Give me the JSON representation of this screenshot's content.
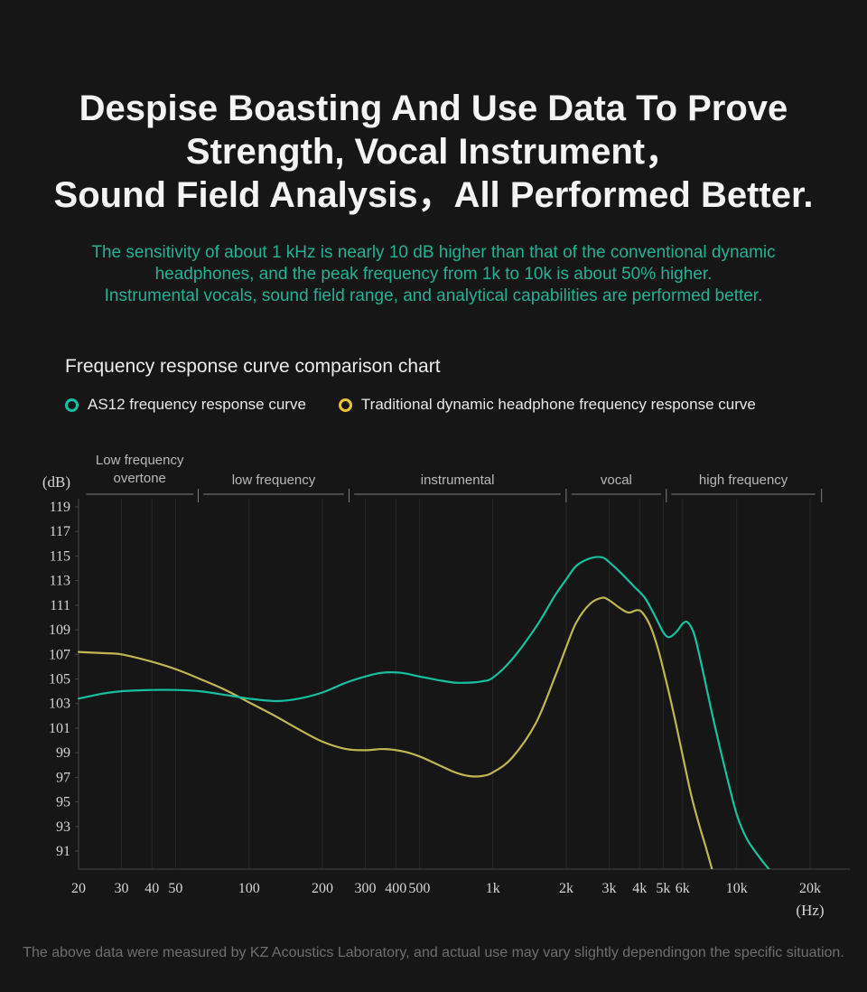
{
  "header": {
    "title_lines": [
      "Despise Boasting And Use Data To Prove",
      "Strength, Vocal Instrument，",
      "Sound Field Analysis，All Performed Better."
    ],
    "subtitle_lines": [
      "The sensitivity of about 1 kHz is nearly 10 dB higher than that of the conventional dynamic",
      "headphones, and the peak frequency from 1k to 10k is about 50% higher.",
      "Instrumental vocals, sound field range, and analytical capabilities are performed better."
    ]
  },
  "section": {
    "title": "Frequency response curve comparison chart"
  },
  "legend": [
    {
      "label": "AS12 frequency response curve",
      "color": "#14c2a3"
    },
    {
      "label": "Traditional dynamic headphone frequency response curve",
      "color": "#e8c52f"
    }
  ],
  "footer": {
    "note": "The above data were measured by KZ Acoustics Laboratory, and actual use may vary slightly dependingon the specific situation."
  },
  "chart_data": {
    "type": "line",
    "x_scale": "log",
    "x_unit": "(Hz)",
    "y_unit": "(dB)",
    "x_range": [
      20,
      20000
    ],
    "y_range": [
      89.5,
      120
    ],
    "grid": "vertical-only",
    "x_ticks": [
      {
        "f": 20,
        "label": "20"
      },
      {
        "f": 30,
        "label": "30"
      },
      {
        "f": 40,
        "label": "40"
      },
      {
        "f": 50,
        "label": "50"
      },
      {
        "f": 100,
        "label": "100"
      },
      {
        "f": 200,
        "label": "200"
      },
      {
        "f": 300,
        "label": "300"
      },
      {
        "f": 400,
        "label": "400"
      },
      {
        "f": 500,
        "label": "500"
      },
      {
        "f": 1000,
        "label": "1k"
      },
      {
        "f": 2000,
        "label": "2k"
      },
      {
        "f": 3000,
        "label": "3k"
      },
      {
        "f": 4000,
        "label": "4k"
      },
      {
        "f": 5000,
        "label": "5k"
      },
      {
        "f": 6000,
        "label": "6k"
      },
      {
        "f": 10000,
        "label": "10k"
      },
      {
        "f": 20000,
        "label": "20k"
      }
    ],
    "y_ticks": [
      119,
      117,
      115,
      113,
      111,
      109,
      107,
      105,
      103,
      101,
      99,
      97,
      95,
      93,
      91
    ],
    "bands": [
      {
        "label_lines": [
          "Low frequency",
          "overtone"
        ],
        "from": 21.5,
        "to": 59
      },
      {
        "label_lines": [
          "low frequency"
        ],
        "from": 65,
        "to": 245
      },
      {
        "label_lines": [
          "instrumental"
        ],
        "from": 270,
        "to": 1900
      },
      {
        "label_lines": [
          "vocal"
        ],
        "from": 2100,
        "to": 4900
      },
      {
        "label_lines": [
          "high frequency"
        ],
        "from": 5400,
        "to": 21000
      }
    ],
    "series": [
      {
        "id": "as12",
        "name": "AS12 frequency response curve",
        "color": "#17c0a0",
        "points": [
          [
            20,
            103.4
          ],
          [
            25,
            103.8
          ],
          [
            30,
            104.0
          ],
          [
            40,
            104.1
          ],
          [
            50,
            104.1
          ],
          [
            63,
            104.0
          ],
          [
            80,
            103.7
          ],
          [
            100,
            103.4
          ],
          [
            130,
            103.2
          ],
          [
            160,
            103.4
          ],
          [
            200,
            103.9
          ],
          [
            250,
            104.7
          ],
          [
            300,
            105.2
          ],
          [
            350,
            105.5
          ],
          [
            420,
            105.5
          ],
          [
            500,
            105.2
          ],
          [
            600,
            104.9
          ],
          [
            700,
            104.7
          ],
          [
            800,
            104.7
          ],
          [
            900,
            104.8
          ],
          [
            1000,
            105.1
          ],
          [
            1200,
            106.6
          ],
          [
            1500,
            109.2
          ],
          [
            1800,
            111.8
          ],
          [
            2000,
            113.1
          ],
          [
            2200,
            114.2
          ],
          [
            2500,
            114.8
          ],
          [
            2800,
            114.9
          ],
          [
            3000,
            114.5
          ],
          [
            3400,
            113.5
          ],
          [
            3800,
            112.5
          ],
          [
            4200,
            111.6
          ],
          [
            4600,
            110.2
          ],
          [
            5000,
            108.8
          ],
          [
            5300,
            108.4
          ],
          [
            5700,
            108.9
          ],
          [
            6000,
            109.5
          ],
          [
            6300,
            109.6
          ],
          [
            6700,
            108.6
          ],
          [
            7200,
            106.0
          ],
          [
            8000,
            101.8
          ],
          [
            9000,
            97.5
          ],
          [
            10000,
            94.0
          ],
          [
            11000,
            92.0
          ],
          [
            12500,
            90.4
          ],
          [
            14000,
            89.2
          ]
        ]
      },
      {
        "id": "traditional",
        "name": "Traditional dynamic headphone frequency response curve",
        "color": "#c2b652",
        "points": [
          [
            20,
            107.2
          ],
          [
            25,
            107.1
          ],
          [
            30,
            107.0
          ],
          [
            40,
            106.4
          ],
          [
            50,
            105.8
          ],
          [
            63,
            105.0
          ],
          [
            80,
            104.1
          ],
          [
            100,
            103.1
          ],
          [
            125,
            102.1
          ],
          [
            160,
            100.9
          ],
          [
            200,
            99.9
          ],
          [
            250,
            99.3
          ],
          [
            300,
            99.2
          ],
          [
            360,
            99.3
          ],
          [
            430,
            99.1
          ],
          [
            500,
            98.7
          ],
          [
            600,
            98.0
          ],
          [
            700,
            97.4
          ],
          [
            800,
            97.1
          ],
          [
            900,
            97.1
          ],
          [
            1000,
            97.4
          ],
          [
            1200,
            98.6
          ],
          [
            1500,
            101.4
          ],
          [
            1800,
            105.2
          ],
          [
            2000,
            107.6
          ],
          [
            2200,
            109.6
          ],
          [
            2500,
            111.1
          ],
          [
            2800,
            111.6
          ],
          [
            3000,
            111.4
          ],
          [
            3300,
            110.8
          ],
          [
            3600,
            110.4
          ],
          [
            3900,
            110.6
          ],
          [
            4100,
            110.4
          ],
          [
            4400,
            109.4
          ],
          [
            4700,
            107.8
          ],
          [
            5000,
            105.8
          ],
          [
            5500,
            102.3
          ],
          [
            6000,
            98.8
          ],
          [
            6500,
            95.6
          ],
          [
            7000,
            93.2
          ],
          [
            7500,
            91.2
          ],
          [
            8000,
            89.2
          ]
        ]
      }
    ]
  }
}
